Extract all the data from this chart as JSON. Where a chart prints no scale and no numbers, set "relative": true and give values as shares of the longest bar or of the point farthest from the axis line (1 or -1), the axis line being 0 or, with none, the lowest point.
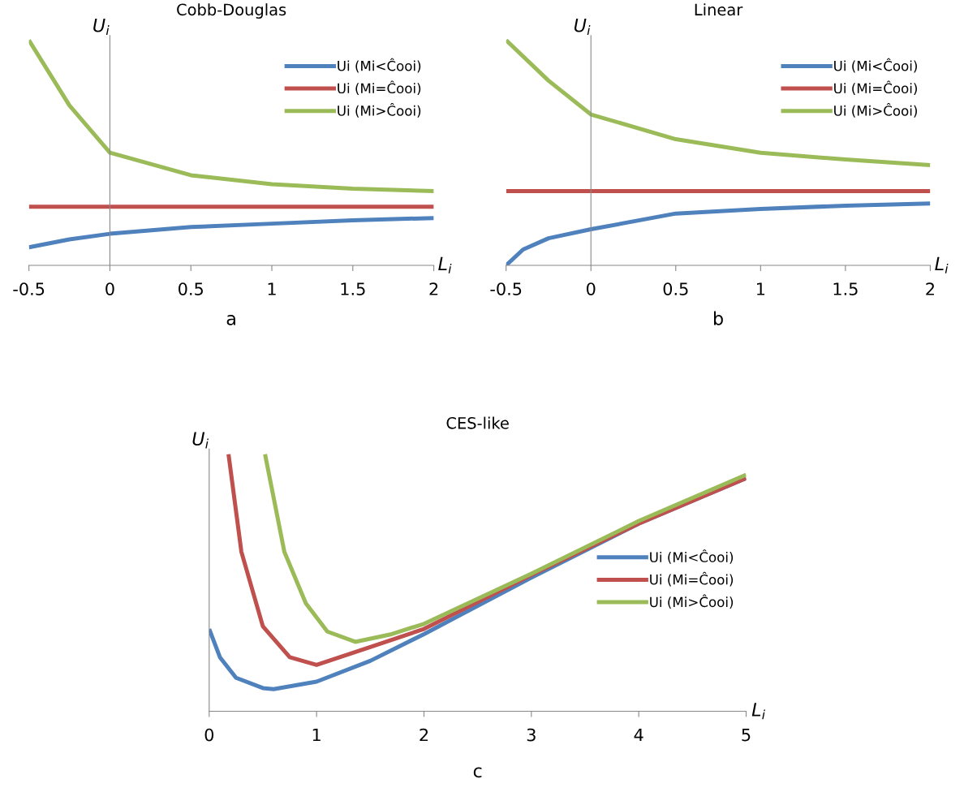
{
  "chart_data": [
    {
      "type": "line",
      "title": "Cobb-Douglas",
      "xlabel": "L$_{i}$",
      "ylabel": "U$_{i}$",
      "relative": true,
      "xlim": [
        -0.5,
        2
      ],
      "xticks": [
        -0.5,
        0,
        0.5,
        1,
        1.5,
        2
      ],
      "tick_labels": "x",
      "legend": "top right",
      "annotations": [
        "a"
      ],
      "series": [
        {
          "name": "Ui (Mi<Ĉooi)",
          "color": "#4f81bd",
          "x": [
            -0.5,
            -0.25,
            0,
            0.5,
            1,
            1.5,
            2
          ],
          "values": [
            0.08,
            0.115,
            0.14,
            0.17,
            0.185,
            0.2,
            0.21
          ]
        },
        {
          "name": "Ui (Mi=Ĉooi)",
          "color": "#c0504d",
          "x": [
            -0.5,
            2
          ],
          "values": [
            0.26,
            0.26
          ]
        },
        {
          "name": "Ui (Mi>Ĉooi)",
          "color": "#9bbb59",
          "x": [
            -0.5,
            -0.25,
            0,
            0.5,
            1,
            1.5,
            2
          ],
          "values": [
            1,
            0.71,
            0.5,
            0.4,
            0.36,
            0.34,
            0.33
          ]
        }
      ]
    },
    {
      "type": "line",
      "title": "Linear",
      "xlabel": "L$_{i}$",
      "ylabel": "U$_{i}$",
      "relative": true,
      "xlim": [
        -0.5,
        2
      ],
      "xticks": [
        -0.5,
        0,
        0.5,
        1,
        1.5,
        2
      ],
      "tick_labels": "x",
      "legend": "top right",
      "annotations": [
        "b"
      ],
      "series": [
        {
          "name": "Ui (Mi<Ĉooi)",
          "color": "#4f81bd",
          "x": [
            -0.5,
            -0.4,
            -0.25,
            0,
            0.5,
            1,
            1.5,
            2
          ],
          "values": [
            0,
            0.07,
            0.12,
            0.16,
            0.23,
            0.25,
            0.265,
            0.275
          ]
        },
        {
          "name": "Ui (Mi=Ĉooi)",
          "color": "#c0504d",
          "x": [
            -0.5,
            2
          ],
          "values": [
            0.33,
            0.33
          ]
        },
        {
          "name": "Ui (Mi>Ĉooi)",
          "color": "#9bbb59",
          "x": [
            -0.5,
            -0.25,
            0,
            0.5,
            1,
            1.5,
            2
          ],
          "values": [
            1,
            0.82,
            0.67,
            0.56,
            0.5,
            0.47,
            0.445
          ]
        }
      ]
    },
    {
      "type": "line",
      "title": "CES-like",
      "xlabel": "L$_{i}$",
      "ylabel": "U$_{i}$",
      "relative": true,
      "xlim": [
        0,
        5
      ],
      "xticks": [
        0,
        1,
        2,
        3,
        4,
        5
      ],
      "tick_labels": "x",
      "legend": "right",
      "annotations": [
        "c"
      ],
      "series": [
        {
          "name": "Ui (Mi<Ĉooi)",
          "color": "#4f81bd",
          "x": [
            0,
            0.1,
            0.25,
            0.5,
            0.6,
            1,
            1.5,
            2,
            3,
            4,
            5
          ],
          "values": [
            0.32,
            0.21,
            0.13,
            0.09,
            0.086,
            0.115,
            0.196,
            0.3,
            0.52,
            0.73,
            0.907
          ]
        },
        {
          "name": "Ui (Mi=Ĉooi)",
          "color": "#c0504d",
          "x": [
            0.18,
            0.3,
            0.5,
            0.75,
            1,
            1.5,
            2,
            3,
            4,
            5
          ],
          "values": [
            1,
            0.62,
            0.33,
            0.21,
            0.18,
            0.25,
            0.32,
            0.53,
            0.73,
            0.907
          ]
        },
        {
          "name": "Ui (Mi>Ĉooi)",
          "color": "#9bbb59",
          "x": [
            0.52,
            0.7,
            0.9,
            1.1,
            1.36,
            1.7,
            2,
            3,
            4,
            5
          ],
          "values": [
            1,
            0.62,
            0.42,
            0.31,
            0.27,
            0.3,
            0.34,
            0.535,
            0.74,
            0.92
          ]
        }
      ]
    }
  ]
}
